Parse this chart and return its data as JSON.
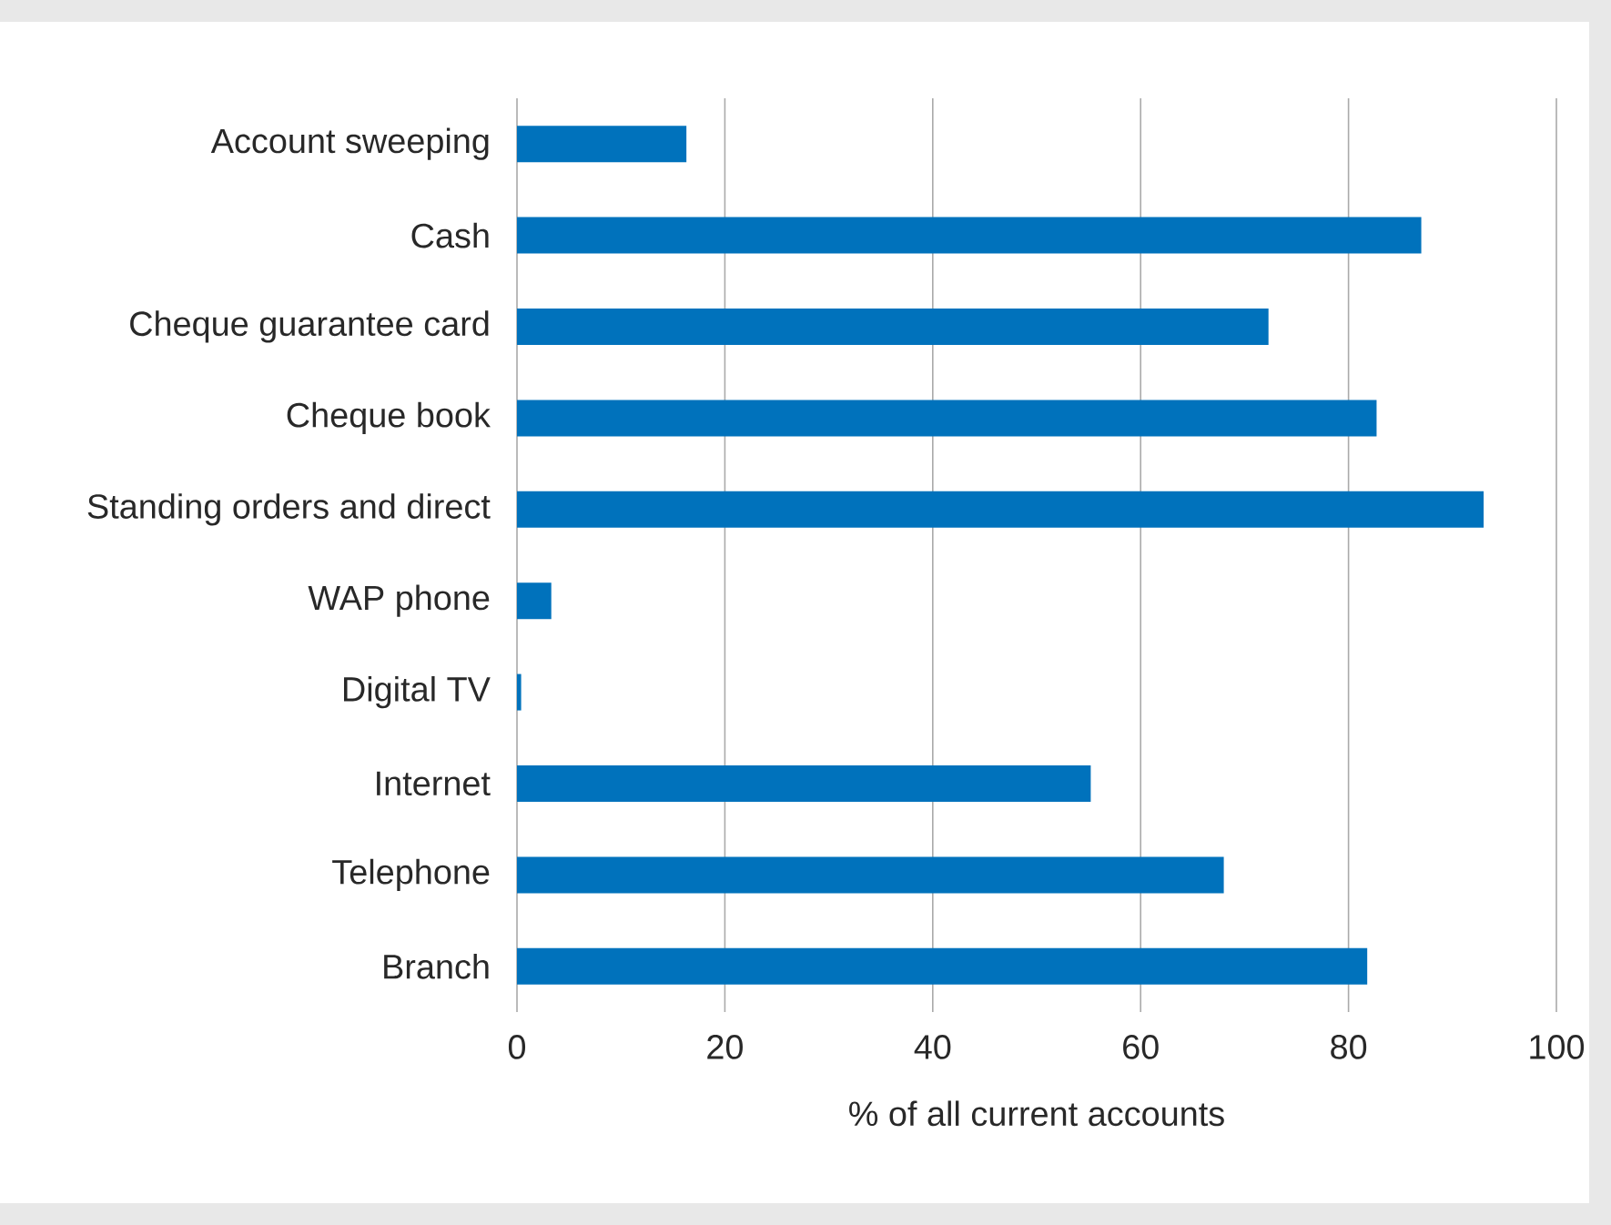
{
  "chart_data": {
    "type": "bar",
    "orientation": "horizontal",
    "xlabel": "% of all current accounts",
    "categories": [
      "Account sweeping",
      "Cash",
      "Cheque guarantee card",
      "Cheque book",
      "Standing orders and direct",
      "WAP phone",
      "Digital TV",
      "Internet",
      "Telephone",
      "Branch"
    ],
    "values": [
      16.3,
      87.0,
      72.3,
      82.7,
      93.0,
      3.3,
      0.4,
      55.2,
      68.0,
      81.8
    ],
    "color": "#0072bc",
    "xlim": [
      0,
      100
    ],
    "xticks": [
      0,
      20,
      40,
      60,
      80,
      100
    ],
    "grid": "x"
  }
}
